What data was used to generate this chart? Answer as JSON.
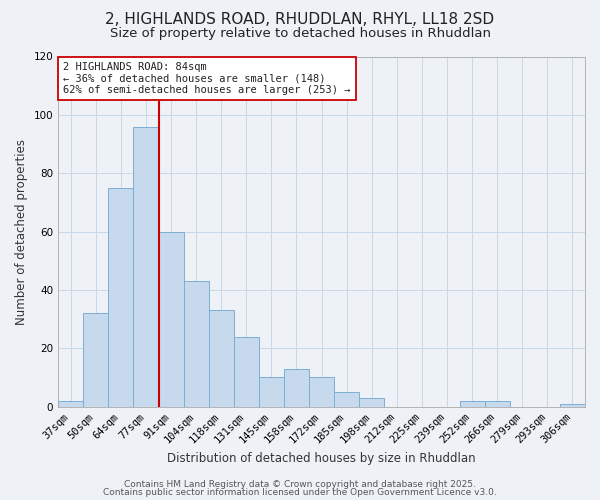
{
  "title": "2, HIGHLANDS ROAD, RHUDDLAN, RHYL, LL18 2SD",
  "subtitle": "Size of property relative to detached houses in Rhuddlan",
  "xlabel": "Distribution of detached houses by size in Rhuddlan",
  "ylabel": "Number of detached properties",
  "bin_labels": [
    "37sqm",
    "50sqm",
    "64sqm",
    "77sqm",
    "91sqm",
    "104sqm",
    "118sqm",
    "131sqm",
    "145sqm",
    "158sqm",
    "172sqm",
    "185sqm",
    "198sqm",
    "212sqm",
    "225sqm",
    "239sqm",
    "252sqm",
    "266sqm",
    "279sqm",
    "293sqm",
    "306sqm"
  ],
  "bar_values": [
    2,
    32,
    75,
    96,
    60,
    43,
    33,
    24,
    10,
    13,
    10,
    5,
    3,
    0,
    0,
    0,
    2,
    2,
    0,
    0,
    1
  ],
  "bar_color": "#c6d9ed",
  "bar_edge_color": "#7bafd4",
  "ylim": [
    0,
    120
  ],
  "yticks": [
    0,
    20,
    40,
    60,
    80,
    100,
    120
  ],
  "vline_color": "#cc0000",
  "annotation_text": "2 HIGHLANDS ROAD: 84sqm\n← 36% of detached houses are smaller (148)\n62% of semi-detached houses are larger (253) →",
  "annotation_box_color": "#ffffff",
  "annotation_box_edge": "#cc0000",
  "footer1": "Contains HM Land Registry data © Crown copyright and database right 2025.",
  "footer2": "Contains public sector information licensed under the Open Government Licence v3.0.",
  "bg_color": "#eef2f7",
  "grid_color": "#c8d8e8",
  "title_fontsize": 11,
  "subtitle_fontsize": 9.5,
  "axis_label_fontsize": 8.5,
  "tick_fontsize": 7.5,
  "annotation_fontsize": 7.5,
  "footer_fontsize": 6.5
}
